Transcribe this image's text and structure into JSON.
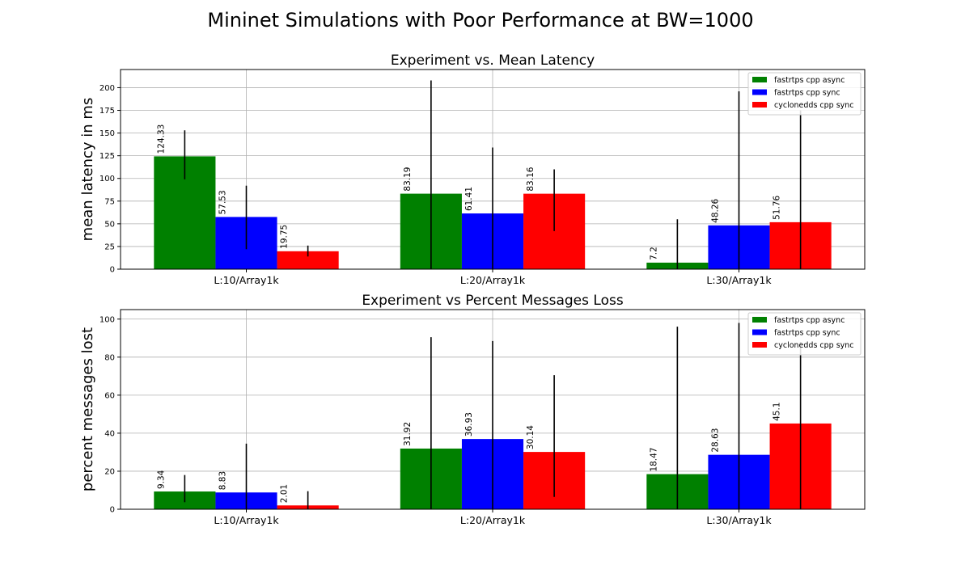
{
  "figure": {
    "suptitle": "Mininet Simulations with Poor Performance at BW=1000"
  },
  "colors": {
    "fastrtps_async": "#008000",
    "fastrtps_sync": "#0000ff",
    "cyclonedds_sync": "#ff0000",
    "errorbar": "#000000",
    "grid": "#b0b0b0"
  },
  "chart_data": [
    {
      "type": "bar",
      "title": "Experiment vs. Mean Latency",
      "xlabel": "",
      "ylabel": "mean latency in ms",
      "categories": [
        "L:10/Array1k",
        "L:20/Array1k",
        "L:30/Array1k"
      ],
      "ylim": [
        0,
        220
      ],
      "yticks": [
        0,
        25,
        50,
        75,
        100,
        125,
        150,
        175,
        200
      ],
      "grid": true,
      "legend": "top-right",
      "series": [
        {
          "name": "fastrtps cpp async",
          "color": "#008000",
          "values": [
            124.33,
            83.19,
            7.2
          ],
          "labels": [
            "124.33",
            "83.19",
            "7.2"
          ],
          "err_low": [
            99,
            0,
            0
          ],
          "err_high": [
            153,
            208,
            55
          ]
        },
        {
          "name": "fastrtps cpp sync",
          "color": "#0000ff",
          "values": [
            57.53,
            61.41,
            48.26
          ],
          "labels": [
            "57.53",
            "61.41",
            "48.26"
          ],
          "err_low": [
            22,
            0,
            0
          ],
          "err_high": [
            92,
            134,
            196
          ]
        },
        {
          "name": "cyclonedds cpp sync",
          "color": "#ff0000",
          "values": [
            19.75,
            83.16,
            51.76
          ],
          "labels": [
            "19.75",
            "83.16",
            "51.76"
          ],
          "err_low": [
            14,
            42,
            0
          ],
          "err_high": [
            26,
            110,
            175
          ]
        }
      ]
    },
    {
      "type": "bar",
      "title": "Experiment vs Percent Messages Loss",
      "xlabel": "",
      "ylabel": "percent messages lost",
      "categories": [
        "L:10/Array1k",
        "L:20/Array1k",
        "L:30/Array1k"
      ],
      "ylim": [
        0,
        105
      ],
      "yticks": [
        0,
        20,
        40,
        60,
        80,
        100
      ],
      "grid": true,
      "legend": "top-right",
      "series": [
        {
          "name": "fastrtps cpp async",
          "color": "#008000",
          "values": [
            9.34,
            31.92,
            18.47
          ],
          "labels": [
            "9.34",
            "31.92",
            "18.47"
          ],
          "err_low": [
            3.7,
            0,
            0
          ],
          "err_high": [
            18,
            90.5,
            96
          ]
        },
        {
          "name": "fastrtps cpp sync",
          "color": "#0000ff",
          "values": [
            8.83,
            36.93,
            28.63
          ],
          "labels": [
            "8.83",
            "36.93",
            "28.63"
          ],
          "err_low": [
            0,
            0,
            0
          ],
          "err_high": [
            34.5,
            88.5,
            98
          ]
        },
        {
          "name": "cyclonedds cpp sync",
          "color": "#ff0000",
          "values": [
            2.01,
            30.14,
            45.1
          ],
          "labels": [
            "2.01",
            "30.14",
            "45.1"
          ],
          "err_low": [
            0,
            6.5,
            0
          ],
          "err_high": [
            9.5,
            70.5,
            88
          ]
        }
      ]
    }
  ]
}
